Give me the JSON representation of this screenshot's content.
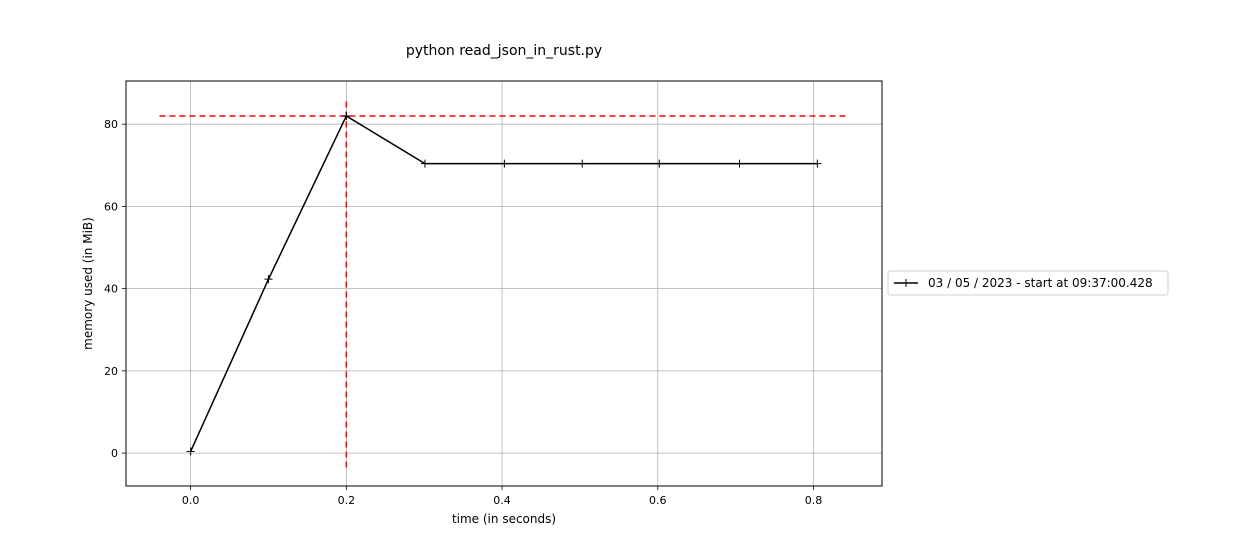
{
  "chart_data": {
    "type": "line",
    "title": "python read_json_in_rust.py",
    "xlabel": "time (in seconds)",
    "ylabel": "memory used (in MiB)",
    "xlim": [
      -0.083,
      0.888
    ],
    "ylim": [
      -8,
      90.5
    ],
    "xticks": [
      0.0,
      0.2,
      0.4,
      0.6,
      0.8
    ],
    "xtick_labels": [
      "0.0",
      "0.2",
      "0.4",
      "0.6",
      "0.8"
    ],
    "yticks": [
      0,
      20,
      40,
      60,
      80
    ],
    "ytick_labels": [
      "0",
      "20",
      "40",
      "60",
      "80"
    ],
    "grid": true,
    "legend_position": "right",
    "series": [
      {
        "name": "03 / 05 / 2023 - start at 09:37:00.428",
        "color": "#000000",
        "marker": "plus",
        "x": [
          0.0,
          0.1,
          0.2,
          0.301,
          0.403,
          0.503,
          0.602,
          0.705,
          0.805
        ],
        "y": [
          0.4,
          42.3,
          82.0,
          70.4,
          70.4,
          70.4,
          70.4,
          70.4,
          70.4
        ]
      }
    ],
    "peak": {
      "x": 0.2,
      "y": 82.0,
      "color": "#ff0000",
      "hline_x_range": [
        -0.04,
        0.845
      ],
      "vline_y_range": [
        -3.5,
        86
      ]
    }
  }
}
